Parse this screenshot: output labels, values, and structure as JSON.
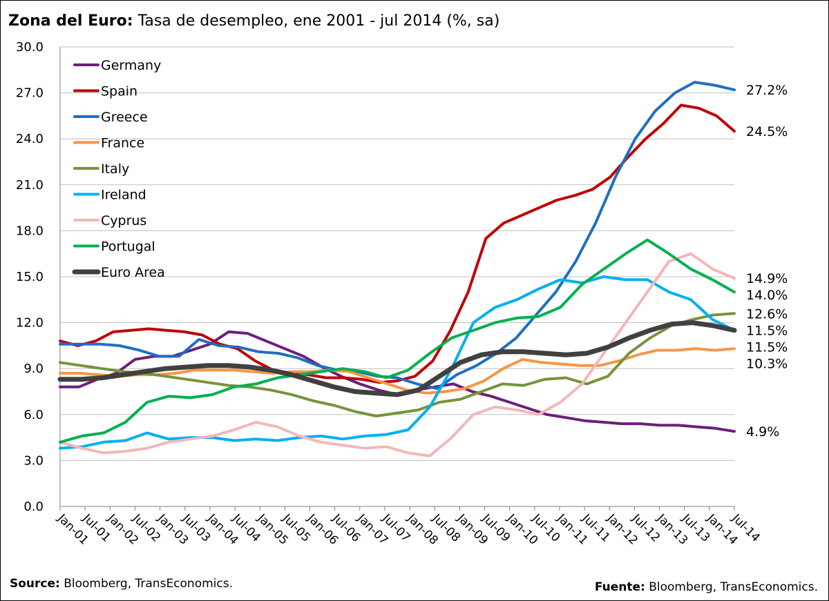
{
  "title": {
    "bold": "Zona del Euro:",
    "rest": " Tasa de desempleo,  ene 2001 - jul 2014 (%, sa)"
  },
  "source": {
    "bold": "Source:",
    "rest": " Bloomberg, TransEconomics."
  },
  "fuente": {
    "bold": "Fuente:",
    "rest": " Bloomberg, TransEconomics."
  },
  "chart_data": {
    "type": "line",
    "title": "Zona del Euro: Tasa de desempleo, ene 2001 - jul 2014 (%, sa)",
    "xlabel": "",
    "ylabel": "",
    "ylim": [
      0,
      30
    ],
    "yticks": [
      "0.0",
      "3.0",
      "6.0",
      "9.0",
      "12.0",
      "15.0",
      "18.0",
      "21.0",
      "24.0",
      "27.0",
      "30.0"
    ],
    "x_tick_labels": [
      "Jan-01",
      "Jul-01",
      "Jan-02",
      "Jul-02",
      "Jan-03",
      "Jul-03",
      "Jan-04",
      "Jul-04",
      "Jan-05",
      "Jul-05",
      "Jan-06",
      "Jul-06",
      "Jan-07",
      "Jul-07",
      "Jan-08",
      "Jul-08",
      "Jan-09",
      "Jul-09",
      "Jan-10",
      "Jul-10",
      "Jan-11",
      "Jul-11",
      "Jan-12",
      "Jul-12",
      "Jan-13",
      "Jul-13",
      "Jan-14",
      "Jul-14"
    ],
    "grid": "horizontal",
    "legend_position": "top-left",
    "series": [
      {
        "name": "Germany",
        "color": "#6b1f7a",
        "end_label": "4.9%",
        "values": [
          7.8,
          7.8,
          8.3,
          8.7,
          9.6,
          9.8,
          9.8,
          10.2,
          10.6,
          11.4,
          11.3,
          10.8,
          10.3,
          9.8,
          9.1,
          8.5,
          8.0,
          7.6,
          7.3,
          7.6,
          7.8,
          8.0,
          7.5,
          7.2,
          6.8,
          6.4,
          6.0,
          5.8,
          5.6,
          5.5,
          5.4,
          5.4,
          5.3,
          5.3,
          5.2,
          5.1,
          4.9
        ]
      },
      {
        "name": "Spain",
        "color": "#c00000",
        "end_label": "24.5%",
        "values": [
          10.8,
          10.5,
          10.8,
          11.4,
          11.5,
          11.6,
          11.5,
          11.4,
          11.2,
          10.6,
          10.3,
          9.5,
          8.9,
          8.7,
          8.6,
          8.4,
          8.4,
          8.3,
          8.1,
          8.2,
          8.5,
          9.5,
          11.5,
          14.0,
          17.5,
          18.5,
          19.0,
          19.5,
          20.0,
          20.3,
          20.7,
          21.5,
          22.8,
          24.0,
          25.0,
          26.2,
          26.0,
          25.5,
          24.5
        ]
      },
      {
        "name": "Greece",
        "color": "#1f6fbf",
        "end_label": "27.2%",
        "values": [
          10.6,
          10.6,
          10.6,
          10.5,
          10.2,
          9.8,
          9.8,
          10.9,
          10.5,
          10.4,
          10.1,
          10.0,
          9.7,
          9.2,
          8.9,
          8.8,
          8.5,
          8.4,
          8.0,
          7.7,
          8.6,
          9.2,
          10.0,
          11.0,
          12.5,
          14.0,
          16.0,
          18.5,
          21.5,
          24.0,
          25.8,
          27.0,
          27.7,
          27.5,
          27.2
        ]
      },
      {
        "name": "France",
        "color": "#f79646",
        "end_label": "10.3%",
        "values": [
          8.7,
          8.7,
          8.6,
          8.5,
          8.6,
          8.6,
          8.7,
          8.9,
          8.9,
          8.9,
          8.8,
          8.7,
          8.8,
          8.8,
          8.9,
          8.8,
          8.4,
          8.0,
          7.6,
          7.4,
          7.5,
          7.7,
          8.2,
          9.0,
          9.6,
          9.4,
          9.3,
          9.2,
          9.2,
          9.5,
          9.9,
          10.2,
          10.2,
          10.3,
          10.2,
          10.3
        ]
      },
      {
        "name": "Italy",
        "color": "#77933c",
        "end_label": "12.6%",
        "values": [
          9.4,
          9.2,
          9.0,
          8.8,
          8.7,
          8.5,
          8.3,
          8.1,
          7.9,
          7.8,
          7.6,
          7.3,
          6.9,
          6.6,
          6.2,
          5.9,
          6.1,
          6.3,
          6.8,
          7.0,
          7.5,
          8.0,
          7.9,
          8.3,
          8.4,
          8.0,
          8.5,
          10.0,
          11.0,
          11.8,
          12.2,
          12.5,
          12.6
        ]
      },
      {
        "name": "Ireland",
        "color": "#00b0f0",
        "end_label": "11.5%",
        "values": [
          3.8,
          3.9,
          4.2,
          4.3,
          4.8,
          4.4,
          4.5,
          4.5,
          4.3,
          4.4,
          4.3,
          4.5,
          4.6,
          4.4,
          4.6,
          4.7,
          5.0,
          6.5,
          9.0,
          12.0,
          13.0,
          13.5,
          14.2,
          14.8,
          14.6,
          15.0,
          14.8,
          14.8,
          14.0,
          13.5,
          12.2,
          11.5
        ]
      },
      {
        "name": "Cyprus",
        "color": "#f4b6b8",
        "end_label": "14.9%",
        "values": [
          4.2,
          3.8,
          3.5,
          3.6,
          3.8,
          4.2,
          4.4,
          4.6,
          5.0,
          5.5,
          5.2,
          4.6,
          4.2,
          4.0,
          3.8,
          3.9,
          3.5,
          3.3,
          4.5,
          6.0,
          6.5,
          6.3,
          6.0,
          6.8,
          8.0,
          10.0,
          12.0,
          14.0,
          16.0,
          16.5,
          15.5,
          14.9
        ]
      },
      {
        "name": "Portugal",
        "color": "#00b050",
        "end_label": "14.0%",
        "values": [
          4.2,
          4.6,
          4.8,
          5.5,
          6.8,
          7.2,
          7.1,
          7.3,
          7.8,
          8.0,
          8.4,
          8.6,
          8.8,
          9.0,
          8.8,
          8.4,
          8.9,
          10.0,
          11.0,
          11.5,
          12.0,
          12.3,
          12.4,
          13.0,
          14.5,
          15.5,
          16.5,
          17.4,
          16.5,
          15.5,
          14.8,
          14.0
        ]
      },
      {
        "name": "Euro Area",
        "color": "#404040",
        "end_label": "11.5%",
        "values": [
          8.3,
          8.3,
          8.4,
          8.6,
          8.8,
          9.0,
          9.1,
          9.2,
          9.2,
          9.1,
          8.9,
          8.6,
          8.2,
          7.8,
          7.5,
          7.4,
          7.3,
          7.6,
          8.5,
          9.4,
          9.9,
          10.1,
          10.1,
          10.0,
          9.9,
          10.0,
          10.4,
          11.0,
          11.5,
          11.9,
          12.0,
          11.8,
          11.5
        ]
      }
    ]
  }
}
